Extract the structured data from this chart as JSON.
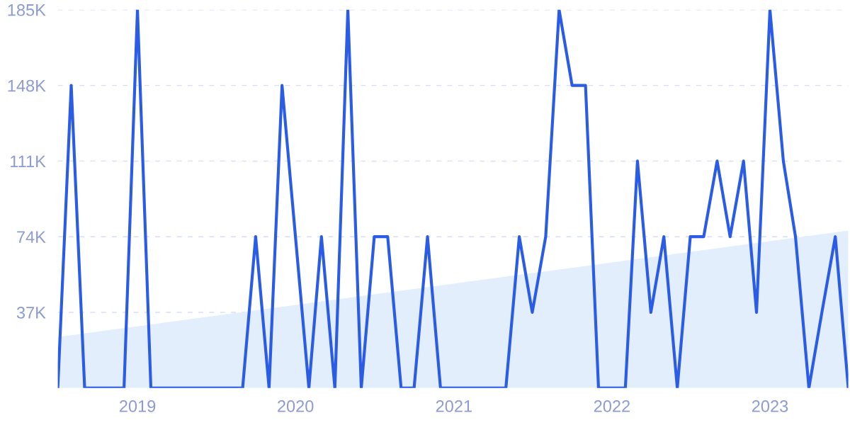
{
  "chart_data": {
    "type": "line",
    "x": [
      "2018-07",
      "2018-08",
      "2018-09",
      "2018-10",
      "2018-11",
      "2018-12",
      "2019-01",
      "2019-02",
      "2019-03",
      "2019-04",
      "2019-05",
      "2019-06",
      "2019-07",
      "2019-08",
      "2019-09",
      "2019-10",
      "2019-11",
      "2019-12",
      "2020-01",
      "2020-02",
      "2020-03",
      "2020-04",
      "2020-05",
      "2020-06",
      "2020-07",
      "2020-08",
      "2020-09",
      "2020-10",
      "2020-11",
      "2020-12",
      "2021-01",
      "2021-02",
      "2021-03",
      "2021-04",
      "2021-05",
      "2021-06",
      "2021-07",
      "2021-08",
      "2021-09",
      "2021-10",
      "2021-11",
      "2021-12",
      "2022-01",
      "2022-02",
      "2022-03",
      "2022-04",
      "2022-05",
      "2022-06",
      "2022-07",
      "2022-08",
      "2022-09",
      "2022-10",
      "2022-11",
      "2022-12",
      "2023-01",
      "2023-02",
      "2023-03",
      "2023-04",
      "2023-05",
      "2023-06",
      "2023-07"
    ],
    "series": [
      {
        "type": "area",
        "color": "#e3eefc",
        "x": [
          "2018-07",
          "2023-07"
        ],
        "values": [
          25,
          77
        ]
      },
      {
        "color": "#2b5ce6",
        "values": [
          0,
          148,
          0,
          0,
          0,
          0,
          185,
          0,
          0,
          0,
          0,
          0,
          0,
          0,
          0,
          74,
          0,
          148,
          74,
          0,
          74,
          0,
          185,
          0,
          74,
          74,
          0,
          0,
          74,
          0,
          0,
          0,
          0,
          0,
          0,
          74,
          37,
          74,
          185,
          148,
          148,
          0,
          0,
          0,
          111,
          37,
          74,
          0,
          74,
          74,
          111,
          74,
          111,
          37,
          185,
          111,
          74,
          0,
          37,
          74,
          0
        ]
      }
    ],
    "xlim": [
      "2018-07",
      "2023-07"
    ],
    "xticks": [
      {
        "value": "2019-01",
        "label": "2019"
      },
      {
        "value": "2020-01",
        "label": "2020"
      },
      {
        "value": "2021-01",
        "label": "2021"
      },
      {
        "value": "2022-01",
        "label": "2022"
      },
      {
        "value": "2023-01",
        "label": "2023"
      }
    ],
    "ylim": [
      0,
      185
    ],
    "yticks": [
      {
        "value": 37,
        "label": "37K"
      },
      {
        "value": 74,
        "label": "74K"
      },
      {
        "value": 111,
        "label": "111K"
      },
      {
        "value": 148,
        "label": "148K"
      },
      {
        "value": 185,
        "label": "185K"
      }
    ],
    "grid": "y",
    "marker": "none",
    "line_style": "solid"
  }
}
